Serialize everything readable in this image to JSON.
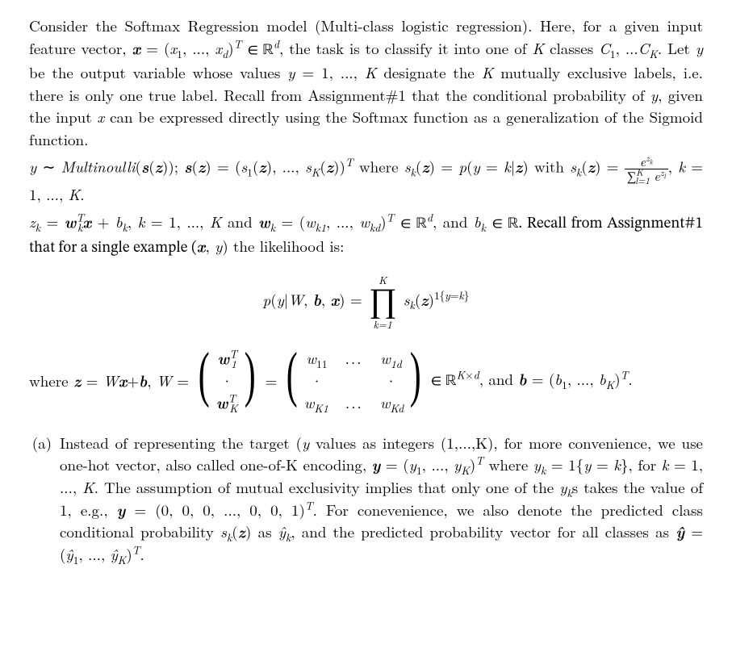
{
  "typography": {
    "font_family": "Computer Modern / Latin Modern (serif)",
    "body_fontsize_pt": 12,
    "line_height": 1.45,
    "text_color": "#000000",
    "background_color": "#ffffff",
    "justify": true
  },
  "intro": {
    "p1_a": "Consider the Softmax Regression model (Multi-class logistic regression). Here, for a given input feature vector, ",
    "p1_b": " = (",
    "p1_c": ", ..., ",
    "p1_d": ")",
    "p1_e": " ∈ ℝ",
    "p1_f": ", the task is to classify it into one of ",
    "p1_g": " classes ",
    "p1_h": ", ...",
    "p1_i": ". Let ",
    "p1_j": " be the output variable whose values ",
    "p1_k": " = 1, ..., ",
    "p1_l": " designate the ",
    "p1_m": " mutually exclusive labels, i.e. there is only one true label. Recall from Assignment#1 that the conditional probability of ",
    "p1_n": ", given the input ",
    "p1_o": " can be expressed directly using the Softmax function as a generalization of the Sigmoid function.",
    "sym_x": "x",
    "sym_x1": "x",
    "sub_1": "1",
    "sym_xd": "x",
    "sub_d": "d",
    "sup_T": "T",
    "sup_d": "d",
    "sym_K": "K",
    "sym_C1": "C",
    "sym_CK": "C",
    "sub_K": "K",
    "sym_y": "y"
  },
  "dist": {
    "a": " ∼ ",
    "b": "Multinoulli",
    "c": "(",
    "d": "(",
    "e": ")); ",
    "f": "(",
    "g": ") = (",
    "h": "(",
    "i": "), ..., ",
    "j": "(",
    "k": "))",
    "l": " where ",
    "m": "(",
    "n": ") = ",
    "o": "(",
    "p": " = ",
    "q": "|",
    "r": ") with ",
    "sk_open": "(",
    "sk_close": ") = ",
    "frac_num_a": "e",
    "frac_num_b": "z",
    "frac_num_c": "k",
    "frac_den_a": "∑",
    "frac_den_b": "l=1",
    "frac_den_c": "K",
    "frac_den_d": "e",
    "frac_den_e": "z",
    "frac_den_f": "l",
    "tail": ", ",
    "tail2": " = 1, ..., ",
    "tail3": ".",
    "sym_y": "y",
    "sym_s": "s",
    "sym_z": "z",
    "sym_s1": "s",
    "sub_1": "1",
    "sym_sK": "s",
    "sub_K": "K",
    "sym_sk": "s",
    "sub_k": "k",
    "sym_p": "p",
    "sym_k": "k",
    "sym_K_it": "K"
  },
  "zk": {
    "a": " = ",
    "b": " + ",
    "c": ", ",
    "d": " = 1, ..., ",
    "e": " and ",
    "f": " = (",
    "g": ", ..., ",
    "h": ")",
    "i": " ∈ ℝ",
    "j": ", and ",
    "k": " ∈ ℝ. Recall from Assignment#1 that for a single example (",
    "l": ", ",
    "m": ") the likelihood is:",
    "sym_zk": "z",
    "sub_k": "k",
    "sym_wk": "w",
    "sup_T": "T",
    "sym_x": "x",
    "sym_bk": "b",
    "sym_k": "k",
    "sym_K": "K",
    "sym_wk1": "w",
    "sub_k1": "k1",
    "sym_wkd": "w",
    "sub_kd": "kd",
    "sup_d": "d",
    "sym_y": "y"
  },
  "eq1": {
    "lhs_p": "p",
    "lhs_open": "(",
    "lhs_y": "y",
    "lhs_bar": "|",
    "lhs_W": "W",
    "lhs_c1": ", ",
    "lhs_b": "b",
    "lhs_c2": ", ",
    "lhs_x": "x",
    "lhs_close": ") = ",
    "prod_top": "K",
    "prod_sym": "∏",
    "prod_bot": "k=1",
    "sk": "s",
    "sub_k": "k",
    "open": "(",
    "z": "z",
    "close": ")",
    "exp_1": "1{",
    "exp_y": "y",
    "exp_eq": "=",
    "exp_k": "k",
    "exp_close": "}"
  },
  "Weq": {
    "lead": "where ",
    "z": "z",
    "eq1": " = ",
    "W": "W",
    "x": "x",
    "plus": "+",
    "b": "b",
    "comma1": ", ",
    "eq2": " = ",
    "m1_r1": "w",
    "m1_r1_sub": "1",
    "m1_r1_sup": "T",
    "m1_dot": "·",
    "m1_rK": "w",
    "m1_rK_sub": "K",
    "m1_rK_sup": "T",
    "eq3": " = ",
    "m2_r1c1": "w",
    "m2_r1c1_sub": "11",
    "m2_dots_h": "...",
    "m2_r1cd": "w",
    "m2_r1cd_sub": "1d",
    "m2_dot": "·",
    "m2_rKc1": "w",
    "m2_rKc1_sub": "K1",
    "m2_rKcd": "w",
    "m2_rKcd_sub": "Kd",
    "in": " ∈ ℝ",
    "Kxd_sup_K": "K",
    "Kxd_times": "×",
    "Kxd_sup_d": "d",
    "and": ", and ",
    "bvec": "b",
    "eq4": " = (",
    "b1": "b",
    "b1_sub": "1",
    "bdots": ", ..., ",
    "bK": "b",
    "bK_sub": "K",
    "bclose": ")",
    "bT": "T",
    "period": "."
  },
  "item_a": {
    "label": "(a)",
    "t1": "Instead of representing the target (",
    "t2": " values as integers (1,...,K), for more convenience, we use one-hot vector, also called one-of-K encoding, ",
    "t3": " = (",
    "t4": ", ..., ",
    "t5": ")",
    "t6": " where ",
    "t7": " = 1{",
    "t8": " = ",
    "t9": "}, for ",
    "t10": " = 1, ..., ",
    "t11": ". The assumption of mutual exclusivity implies that only one of the ",
    "t12": "s takes the value of 1, e.g., ",
    "t13": " = (0, 0, 0, ..., 0, 0, 1)",
    "t14": ". For conevenience, we also denote the predicted class conditional probability ",
    "t15": "(",
    "t16": ") as ",
    "t17": ", and the predicted probability vector for all classes as ",
    "t18": " = (",
    "t19": ", ..., ",
    "t20": ")",
    "t21": ".",
    "sym_y": "y",
    "sym_boldy": "y",
    "sym_y1": "y",
    "sub_1": "1",
    "sym_yK": "y",
    "sub_K": "K",
    "sup_T": "T",
    "sym_yk": "y",
    "sub_k": "k",
    "sym_k": "k",
    "sym_K": "K",
    "sym_sk": "s",
    "sym_z": "z",
    "sym_yhatk": "ŷ",
    "sym_yhat": "ŷ",
    "sym_yh1": "ŷ",
    "sym_yhK": "ŷ"
  }
}
